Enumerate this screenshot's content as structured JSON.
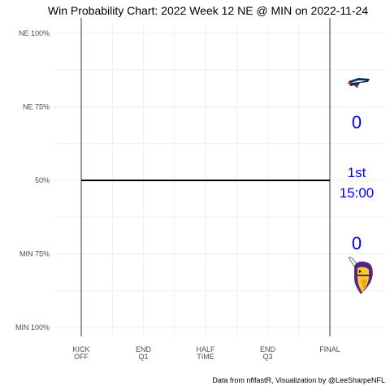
{
  "chart_data": {
    "type": "line",
    "title": "Win Probability Chart: 2022 Week 12 NE @ MIN on 2022-11-24",
    "y_tick_labels": [
      "NE 100%",
      "NE 75%",
      "50%",
      "MIN 75%",
      "MIN 100%"
    ],
    "y_tick_values": [
      1.0,
      0.75,
      0.5,
      0.25,
      0.0
    ],
    "x_tick_labels": [
      [
        "KICK",
        "OFF"
      ],
      [
        "END",
        "Q1"
      ],
      [
        "HALF",
        "TIME"
      ],
      [
        "END",
        "Q3"
      ],
      [
        "FINAL"
      ]
    ],
    "x_tick_values": [
      0,
      900,
      1800,
      2700,
      3600
    ],
    "xlim": [
      -400,
      4400
    ],
    "ylim": [
      -0.03,
      1.03
    ],
    "grid": true,
    "vertical_markers": [
      0,
      3600
    ],
    "series": [
      {
        "x": [
          0,
          3600
        ],
        "y": [
          0.5,
          0.5
        ],
        "color": "#000000"
      }
    ],
    "away_team": {
      "abbr": "NE",
      "score": "0",
      "logo": "patriots-logo"
    },
    "home_team": {
      "abbr": "MIN",
      "score": "0",
      "logo": "vikings-logo"
    },
    "game_clock": {
      "quarter": "1st",
      "time": "15:00"
    },
    "caption": "Data from nflfastR, Visualization by @LeeSharpeNFL",
    "colors": {
      "score_text": "#0000ee",
      "marker_line": "#191970",
      "grid": "#ebebeb",
      "wp_line": "#000000"
    }
  }
}
